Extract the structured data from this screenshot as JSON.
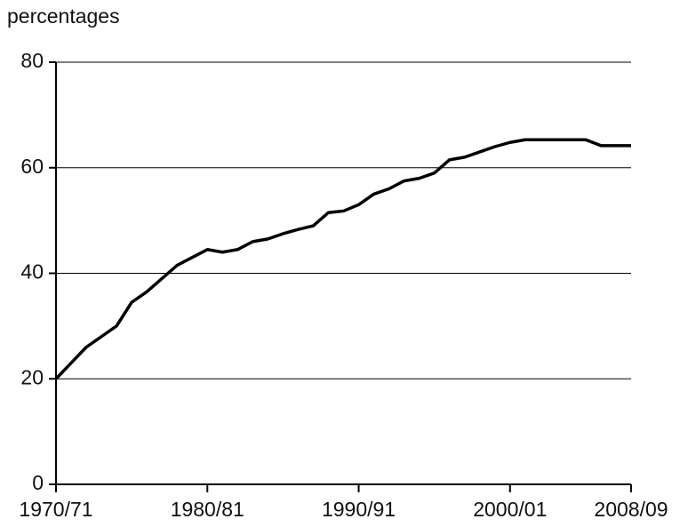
{
  "chart_data": {
    "type": "line",
    "y_label": "percentages",
    "categories": [
      "1970/71",
      null,
      null,
      null,
      null,
      null,
      null,
      null,
      null,
      null,
      "1980/81",
      null,
      null,
      null,
      null,
      null,
      null,
      null,
      null,
      null,
      "1990/91",
      null,
      null,
      null,
      null,
      null,
      null,
      null,
      null,
      null,
      "2000/01",
      null,
      null,
      null,
      null,
      null,
      null,
      null,
      "2008/09"
    ],
    "series": [
      {
        "color": "#000000",
        "values": [
          20,
          23,
          26,
          28,
          30,
          34.5,
          36.5,
          39,
          41.5,
          43,
          44.5,
          44,
          44.5,
          46,
          46.5,
          47.5,
          48.3,
          49,
          51.5,
          51.8,
          53,
          55,
          56,
          57.5,
          58,
          59,
          61.5,
          62,
          63,
          64,
          64.8,
          65.3,
          65.3,
          65.3,
          65.3,
          65.3,
          64.2,
          64.2,
          64.2
        ]
      }
    ],
    "ylim": [
      0,
      80
    ],
    "yticks": [
      0,
      20,
      40,
      60,
      80
    ],
    "grid": true
  }
}
